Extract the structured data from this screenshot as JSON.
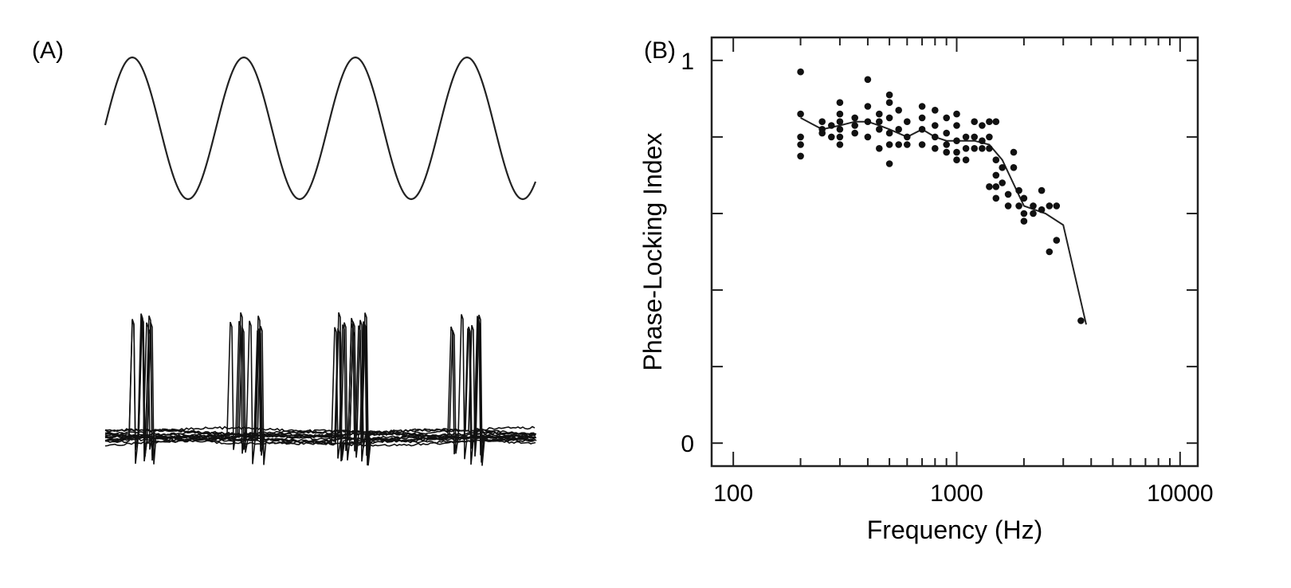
{
  "panels": {
    "a_label": "(A)",
    "b_label": "(B)"
  },
  "chart_data": [
    {
      "type": "line",
      "title": "",
      "panel": "(A)",
      "description_series": [
        {
          "role": "stimulus",
          "kind": "sine",
          "cycles": 4
        },
        {
          "role": "response",
          "kind": "spike-train overlay",
          "spike_bursts_per_cycle": 1,
          "bursts": 4
        }
      ],
      "xlabel": "",
      "ylabel": "",
      "grid": false,
      "legend": "none"
    },
    {
      "type": "scatter",
      "title": "",
      "panel": "(B)",
      "xlabel": "Frequency (Hz)",
      "ylabel": "Phase-Locking Index",
      "xscale": "log",
      "xlim": [
        80,
        12000
      ],
      "ylim": [
        -0.06,
        1.06
      ],
      "xticks": [
        100,
        1000,
        10000
      ],
      "xtick_labels": [
        "100",
        "1000",
        "10000"
      ],
      "yticks": [
        0,
        1
      ],
      "ytick_labels": [
        "0",
        "1"
      ],
      "y_minor_ticks": [
        0.2,
        0.4,
        0.6,
        0.8
      ],
      "grid": false,
      "legend": "none",
      "series": [
        {
          "kind": "points",
          "points": [
            [
              200,
              0.97
            ],
            [
              200,
              0.86
            ],
            [
              200,
              0.8
            ],
            [
              200,
              0.78
            ],
            [
              200,
              0.75
            ],
            [
              250,
              0.84
            ],
            [
              250,
              0.82
            ],
            [
              250,
              0.81
            ],
            [
              275,
              0.8
            ],
            [
              275,
              0.83
            ],
            [
              300,
              0.89
            ],
            [
              300,
              0.86
            ],
            [
              300,
              0.84
            ],
            [
              300,
              0.82
            ],
            [
              300,
              0.8
            ],
            [
              300,
              0.78
            ],
            [
              350,
              0.85
            ],
            [
              350,
              0.83
            ],
            [
              350,
              0.81
            ],
            [
              400,
              0.95
            ],
            [
              400,
              0.88
            ],
            [
              400,
              0.84
            ],
            [
              400,
              0.8
            ],
            [
              450,
              0.86
            ],
            [
              450,
              0.84
            ],
            [
              450,
              0.82
            ],
            [
              450,
              0.77
            ],
            [
              500,
              0.91
            ],
            [
              500,
              0.89
            ],
            [
              500,
              0.85
            ],
            [
              500,
              0.81
            ],
            [
              500,
              0.78
            ],
            [
              500,
              0.73
            ],
            [
              550,
              0.87
            ],
            [
              550,
              0.82
            ],
            [
              550,
              0.78
            ],
            [
              600,
              0.84
            ],
            [
              600,
              0.8
            ],
            [
              600,
              0.78
            ],
            [
              700,
              0.88
            ],
            [
              700,
              0.85
            ],
            [
              700,
              0.82
            ],
            [
              700,
              0.78
            ],
            [
              800,
              0.87
            ],
            [
              800,
              0.83
            ],
            [
              800,
              0.8
            ],
            [
              800,
              0.77
            ],
            [
              900,
              0.85
            ],
            [
              900,
              0.81
            ],
            [
              900,
              0.78
            ],
            [
              900,
              0.76
            ],
            [
              1000,
              0.86
            ],
            [
              1000,
              0.83
            ],
            [
              1000,
              0.79
            ],
            [
              1000,
              0.76
            ],
            [
              1000,
              0.74
            ],
            [
              1100,
              0.8
            ],
            [
              1100,
              0.77
            ],
            [
              1100,
              0.74
            ],
            [
              1200,
              0.84
            ],
            [
              1200,
              0.8
            ],
            [
              1200,
              0.77
            ],
            [
              1300,
              0.83
            ],
            [
              1300,
              0.79
            ],
            [
              1300,
              0.77
            ],
            [
              1400,
              0.84
            ],
            [
              1400,
              0.8
            ],
            [
              1400,
              0.77
            ],
            [
              1400,
              0.67
            ],
            [
              1500,
              0.84
            ],
            [
              1500,
              0.74
            ],
            [
              1500,
              0.7
            ],
            [
              1500,
              0.67
            ],
            [
              1500,
              0.64
            ],
            [
              1600,
              0.72
            ],
            [
              1600,
              0.68
            ],
            [
              1700,
              0.65
            ],
            [
              1700,
              0.62
            ],
            [
              1800,
              0.76
            ],
            [
              1800,
              0.72
            ],
            [
              1900,
              0.66
            ],
            [
              1900,
              0.62
            ],
            [
              2000,
              0.64
            ],
            [
              2000,
              0.6
            ],
            [
              2000,
              0.58
            ],
            [
              2200,
              0.62
            ],
            [
              2200,
              0.6
            ],
            [
              2400,
              0.66
            ],
            [
              2400,
              0.61
            ],
            [
              2600,
              0.62
            ],
            [
              2600,
              0.5
            ],
            [
              2800,
              0.62
            ],
            [
              2800,
              0.53
            ],
            [
              3600,
              0.32
            ]
          ]
        },
        {
          "kind": "mean-line",
          "points": [
            [
              200,
              0.85
            ],
            [
              250,
              0.82
            ],
            [
              300,
              0.83
            ],
            [
              350,
              0.84
            ],
            [
              400,
              0.84
            ],
            [
              450,
              0.83
            ],
            [
              500,
              0.82
            ],
            [
              600,
              0.8
            ],
            [
              700,
              0.82
            ],
            [
              800,
              0.8
            ],
            [
              900,
              0.79
            ],
            [
              1000,
              0.79
            ],
            [
              1200,
              0.79
            ],
            [
              1400,
              0.78
            ],
            [
              1600,
              0.74
            ],
            [
              2000,
              0.62
            ],
            [
              2500,
              0.6
            ],
            [
              3000,
              0.57
            ],
            [
              3800,
              0.31
            ]
          ]
        }
      ]
    }
  ]
}
